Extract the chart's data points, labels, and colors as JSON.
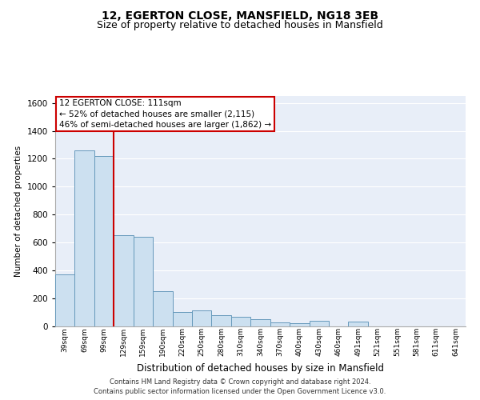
{
  "title1": "12, EGERTON CLOSE, MANSFIELD, NG18 3EB",
  "title2": "Size of property relative to detached houses in Mansfield",
  "xlabel": "Distribution of detached houses by size in Mansfield",
  "ylabel": "Number of detached properties",
  "categories": [
    "39sqm",
    "69sqm",
    "99sqm",
    "129sqm",
    "159sqm",
    "190sqm",
    "220sqm",
    "250sqm",
    "280sqm",
    "310sqm",
    "340sqm",
    "370sqm",
    "400sqm",
    "430sqm",
    "460sqm",
    "491sqm",
    "521sqm",
    "551sqm",
    "581sqm",
    "611sqm",
    "641sqm"
  ],
  "values": [
    370,
    1260,
    1220,
    650,
    640,
    250,
    100,
    110,
    75,
    65,
    50,
    25,
    20,
    35,
    0,
    30,
    0,
    0,
    0,
    0,
    0
  ],
  "bar_color": "#cce0f0",
  "bar_edge_color": "#6699bb",
  "vline_color": "#cc0000",
  "annotation_line1": "12 EGERTON CLOSE: 111sqm",
  "annotation_line2": "← 52% of detached houses are smaller (2,115)",
  "annotation_line3": "46% of semi-detached houses are larger (1,862) →",
  "ylim": [
    0,
    1650
  ],
  "yticks": [
    0,
    200,
    400,
    600,
    800,
    1000,
    1200,
    1400,
    1600
  ],
  "footer_line1": "Contains HM Land Registry data © Crown copyright and database right 2024.",
  "footer_line2": "Contains public sector information licensed under the Open Government Licence v3.0.",
  "bg_color": "#e8eef8",
  "grid_color": "#ffffff",
  "title_fontsize": 10,
  "subtitle_fontsize": 9
}
